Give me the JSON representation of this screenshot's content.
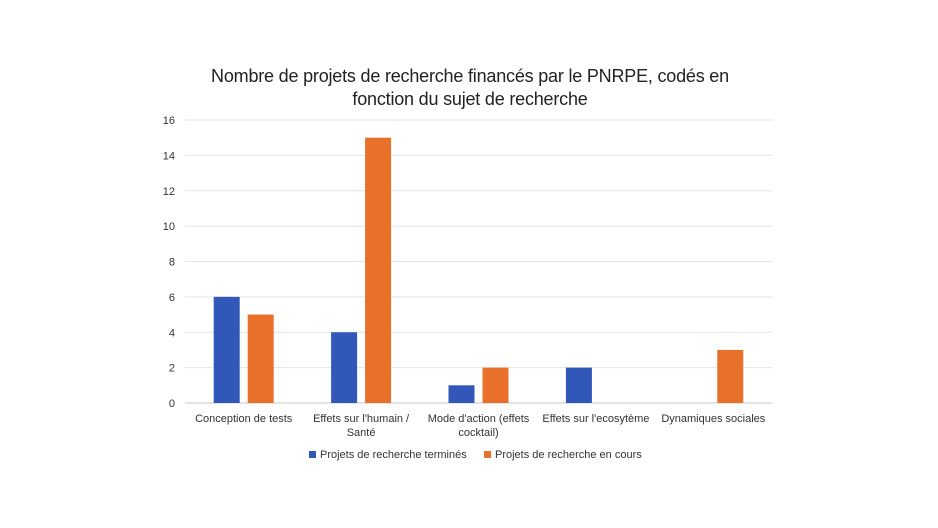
{
  "chart_data": {
    "type": "bar",
    "title_lines": [
      "Nombre de projets de recherche financés par le PNRPE, codés en",
      "fonction du sujet de recherche"
    ],
    "categories": [
      [
        "Conception de tests"
      ],
      [
        "Effets sur l'humain /",
        "Santé"
      ],
      [
        "Mode d'action (effets",
        "cocktail)"
      ],
      [
        "Effets sur l'ecosytème"
      ],
      [
        "Dynamiques sociales"
      ]
    ],
    "series": [
      {
        "name": "Projets de recherche terminés",
        "color": "#3157b9",
        "values": [
          6,
          4,
          1,
          2,
          0
        ]
      },
      {
        "name": "Projets de recherche en cours",
        "color": "#e8702a",
        "values": [
          5,
          15,
          2,
          0,
          3
        ]
      }
    ],
    "y_ticks": [
      "0",
      "2",
      "4",
      "6",
      "8",
      "10",
      "12",
      "14",
      "16"
    ],
    "ylim": [
      0,
      16
    ],
    "grid": true,
    "legend_position": "bottom"
  }
}
